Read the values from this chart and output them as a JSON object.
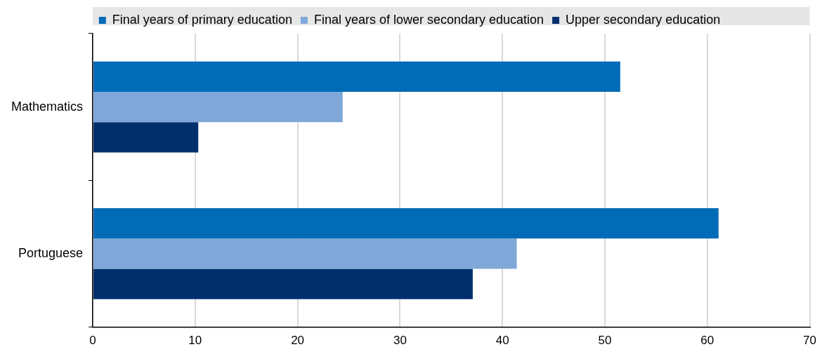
{
  "chart_data": {
    "type": "bar",
    "orientation": "horizontal",
    "categories": [
      "Mathematics",
      "Portuguese"
    ],
    "series": [
      {
        "name": "Final years of primary education",
        "color": "#006bb6",
        "values": [
          51.5,
          61.1
        ]
      },
      {
        "name": "Final years of lower secondary education",
        "color": "#7fa8d9",
        "values": [
          24.4,
          41.4
        ]
      },
      {
        "name": "Upper secondary education",
        "color": "#002f6c",
        "values": [
          10.3,
          37.1
        ]
      }
    ],
    "xlim": [
      0,
      70
    ],
    "xticks": [
      0,
      10,
      20,
      30,
      40,
      50,
      60,
      70
    ],
    "grid": "x",
    "legend": "top"
  }
}
